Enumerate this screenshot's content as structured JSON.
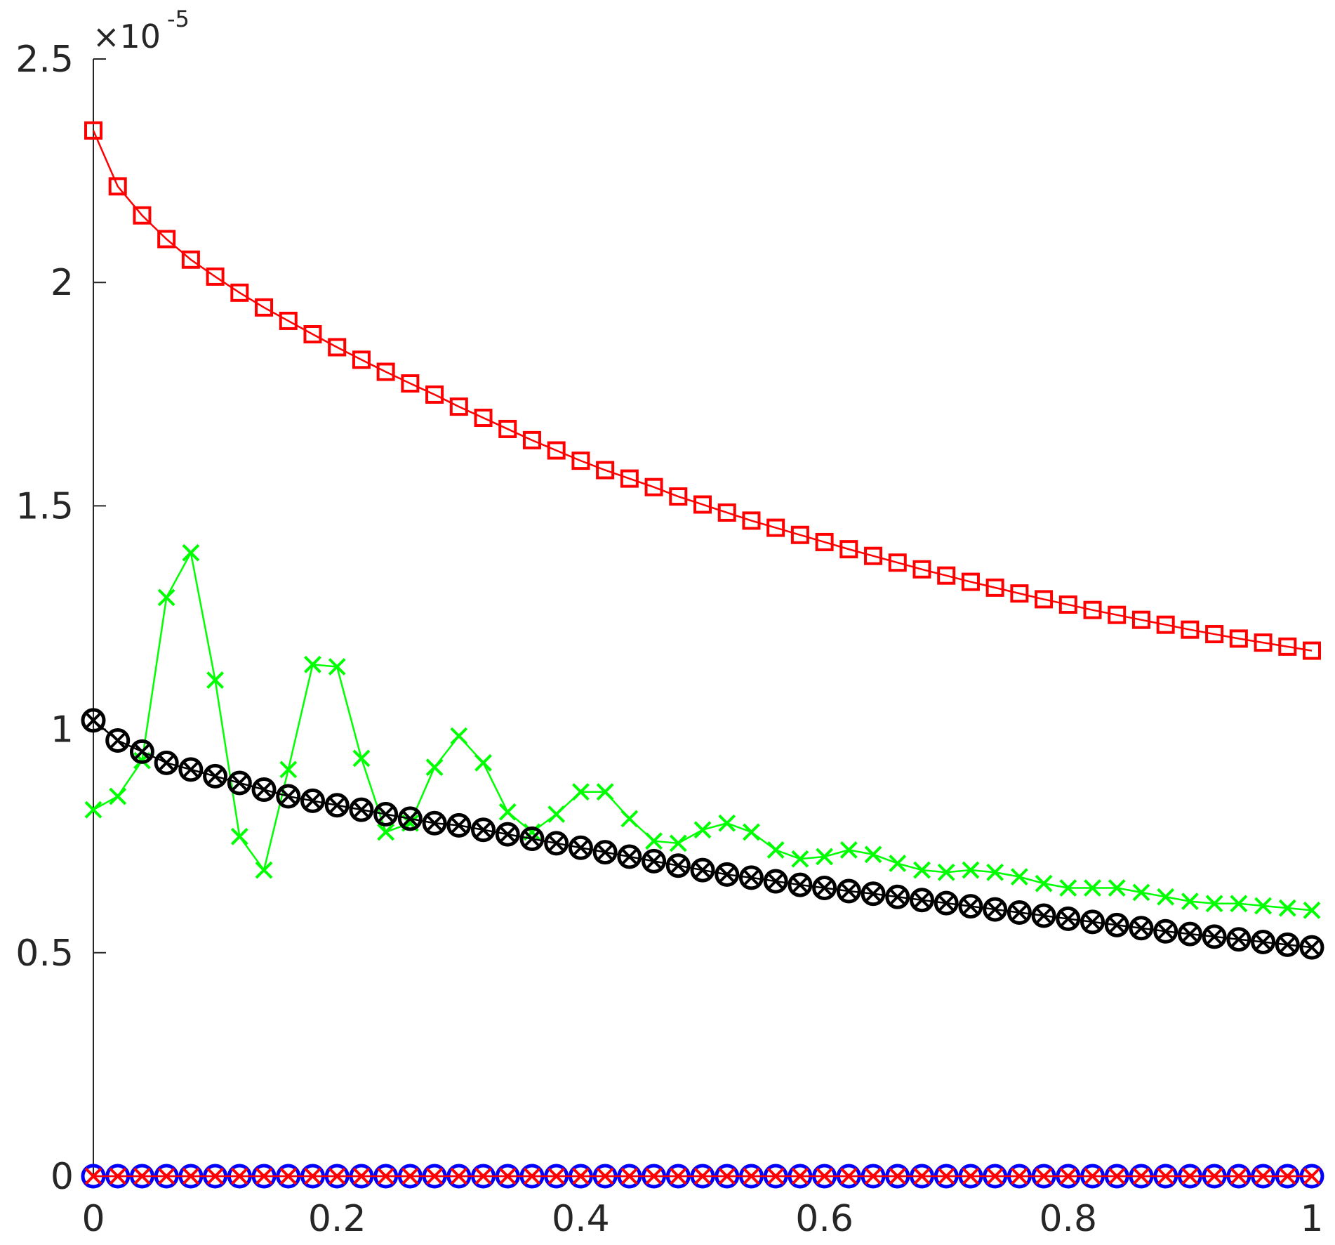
{
  "chart_data": {
    "type": "line",
    "title": "",
    "xlabel": "",
    "ylabel": "",
    "xlim": [
      0,
      1
    ],
    "ylim": [
      0,
      2.5
    ],
    "y_exponent_label": "×10",
    "y_exponent_power": "-5",
    "x_ticks": [
      0,
      0.2,
      0.4,
      0.6,
      0.8,
      1
    ],
    "x_tick_labels": [
      "0",
      "0.2",
      "0.4",
      "0.6",
      "0.8",
      "1"
    ],
    "y_ticks": [
      0,
      0.5,
      1,
      1.5,
      2,
      2.5
    ],
    "y_tick_labels": [
      "0",
      "0.5",
      "1",
      "1.5",
      "2",
      "2.5"
    ],
    "grid": false,
    "x": [
      0,
      0.02,
      0.04,
      0.06,
      0.08,
      0.1,
      0.12,
      0.14,
      0.16,
      0.18,
      0.2,
      0.22,
      0.24,
      0.26,
      0.28,
      0.3,
      0.32,
      0.34,
      0.36,
      0.38,
      0.4,
      0.42,
      0.44,
      0.46,
      0.48,
      0.5,
      0.52,
      0.54,
      0.56,
      0.58,
      0.6,
      0.62,
      0.64,
      0.66,
      0.68,
      0.7,
      0.72,
      0.74,
      0.76,
      0.78,
      0.8,
      0.82,
      0.84,
      0.86,
      0.88,
      0.9,
      0.92,
      0.94,
      0.96,
      0.98,
      1.0
    ],
    "series": [
      {
        "color": "#ff0000",
        "marker": "square",
        "values": [
          2.34,
          2.215,
          2.15,
          2.097,
          2.051,
          2.013,
          1.977,
          1.944,
          1.914,
          1.884,
          1.855,
          1.827,
          1.8,
          1.774,
          1.749,
          1.722,
          1.697,
          1.672,
          1.647,
          1.624,
          1.601,
          1.58,
          1.561,
          1.542,
          1.521,
          1.503,
          1.485,
          1.467,
          1.451,
          1.435,
          1.419,
          1.403,
          1.388,
          1.373,
          1.358,
          1.344,
          1.33,
          1.317,
          1.304,
          1.291,
          1.279,
          1.267,
          1.256,
          1.245,
          1.234,
          1.223,
          1.213,
          1.203,
          1.194,
          1.185,
          1.176
        ]
      },
      {
        "color": "#00ff00",
        "marker": "x",
        "values": [
          0.82,
          0.85,
          0.93,
          1.295,
          1.395,
          1.11,
          0.76,
          0.685,
          0.91,
          1.145,
          1.14,
          0.935,
          0.77,
          0.79,
          0.915,
          0.985,
          0.925,
          0.815,
          0.77,
          0.81,
          0.86,
          0.86,
          0.8,
          0.75,
          0.745,
          0.775,
          0.79,
          0.77,
          0.73,
          0.71,
          0.715,
          0.73,
          0.72,
          0.7,
          0.685,
          0.68,
          0.685,
          0.68,
          0.67,
          0.655,
          0.645,
          0.645,
          0.645,
          0.635,
          0.625,
          0.615,
          0.61,
          0.61,
          0.605,
          0.6,
          0.595
        ]
      },
      {
        "color": "#000000",
        "marker": "circle-x",
        "values": [
          1.02,
          0.975,
          0.95,
          0.925,
          0.91,
          0.895,
          0.88,
          0.865,
          0.85,
          0.84,
          0.83,
          0.82,
          0.81,
          0.8,
          0.79,
          0.785,
          0.775,
          0.765,
          0.755,
          0.745,
          0.735,
          0.725,
          0.715,
          0.705,
          0.695,
          0.685,
          0.675,
          0.668,
          0.66,
          0.652,
          0.645,
          0.638,
          0.632,
          0.625,
          0.618,
          0.611,
          0.604,
          0.597,
          0.59,
          0.583,
          0.576,
          0.569,
          0.562,
          0.555,
          0.548,
          0.542,
          0.536,
          0.53,
          0.524,
          0.518,
          0.512
        ]
      },
      {
        "color": "#0000ff",
        "marker": "circle",
        "values": [
          0,
          0,
          0,
          0,
          0,
          0,
          0,
          0,
          0,
          0,
          0,
          0,
          0,
          0,
          0,
          0,
          0,
          0,
          0,
          0,
          0,
          0,
          0,
          0,
          0,
          0,
          0,
          0,
          0,
          0,
          0,
          0,
          0,
          0,
          0,
          0,
          0,
          0,
          0,
          0,
          0,
          0,
          0,
          0,
          0,
          0,
          0,
          0,
          0,
          0,
          0
        ]
      },
      {
        "color": "#ff0000",
        "marker": "x",
        "values": [
          0,
          0,
          0,
          0,
          0,
          0,
          0,
          0,
          0,
          0,
          0,
          0,
          0,
          0,
          0,
          0,
          0,
          0,
          0,
          0,
          0,
          0,
          0,
          0,
          0,
          0,
          0,
          0,
          0,
          0,
          0,
          0,
          0,
          0,
          0,
          0,
          0,
          0,
          0,
          0,
          0,
          0,
          0,
          0,
          0,
          0,
          0,
          0,
          0,
          0,
          0
        ]
      }
    ]
  }
}
